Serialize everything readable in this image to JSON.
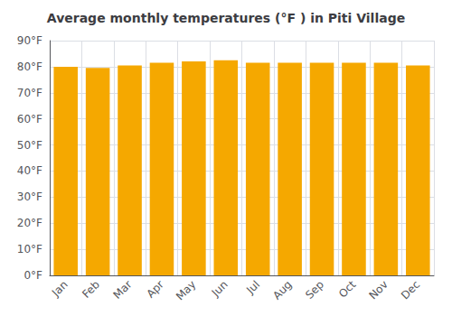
{
  "chart_data": {
    "type": "bar",
    "title": "Average monthly temperatures (°F ) in Piti Village",
    "categories": [
      "Jan",
      "Feb",
      "Mar",
      "Apr",
      "May",
      "Jun",
      "Jul",
      "Aug",
      "Sep",
      "Oct",
      "Nov",
      "Dec"
    ],
    "values": [
      80.0,
      79.5,
      80.5,
      81.5,
      82.0,
      82.5,
      81.5,
      81.5,
      81.5,
      81.5,
      81.5,
      80.5
    ],
    "color": "#F5A800",
    "ylim": [
      0,
      90
    ],
    "yticks": [
      {
        "value": 0,
        "label": "0°F"
      },
      {
        "value": 10,
        "label": "10°F"
      },
      {
        "value": 20,
        "label": "20°F"
      },
      {
        "value": 30,
        "label": "30°F"
      },
      {
        "value": 40,
        "label": "40°F"
      },
      {
        "value": 50,
        "label": "50°F"
      },
      {
        "value": 60,
        "label": "60°F"
      },
      {
        "value": 70,
        "label": "70°F"
      },
      {
        "value": 80,
        "label": "80°F"
      },
      {
        "value": 90,
        "label": "90°F"
      }
    ],
    "grid": true
  }
}
